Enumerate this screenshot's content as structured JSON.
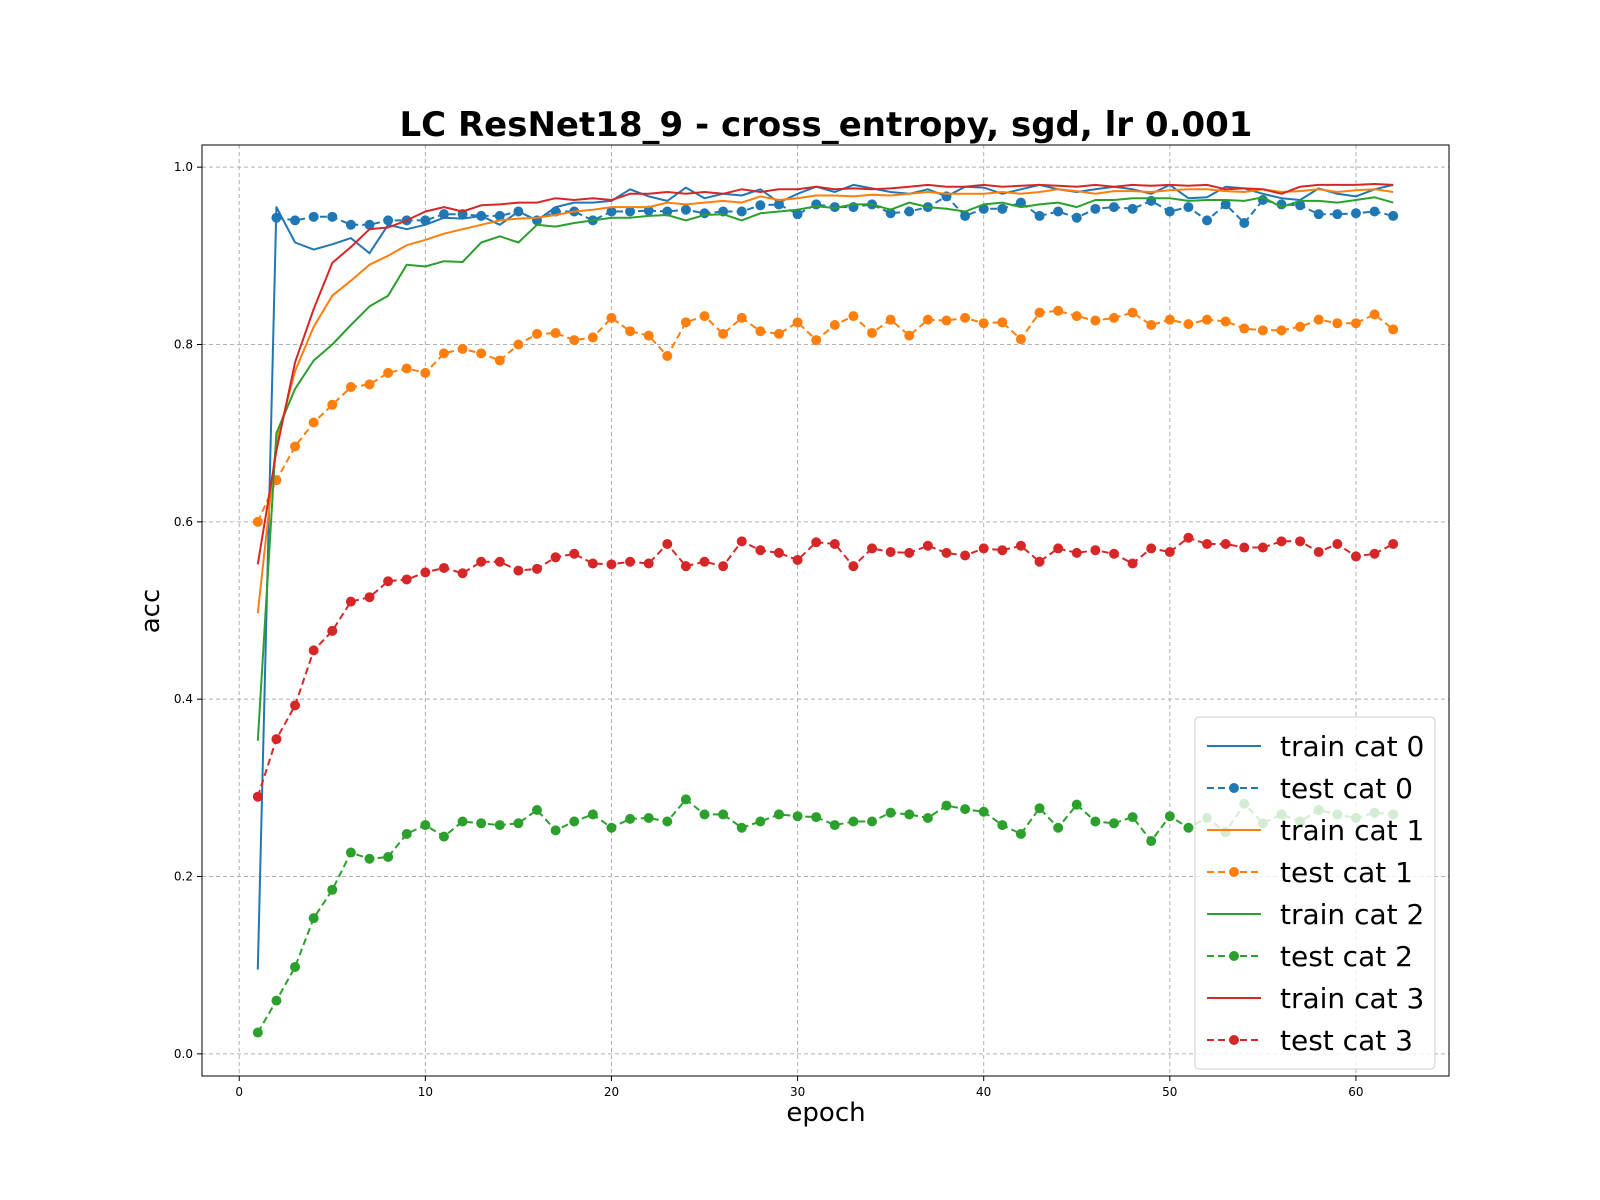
{
  "chart_data": {
    "type": "line",
    "title": "LC ResNet18_9 - cross_entropy, sgd, lr 0.001",
    "xlabel": "epoch",
    "ylabel": "acc",
    "xlim": [
      -2,
      65
    ],
    "ylim": [
      -0.025,
      1.025
    ],
    "xticks": [
      0,
      10,
      20,
      30,
      40,
      50,
      60
    ],
    "yticks": [
      0.0,
      0.2,
      0.4,
      0.6,
      0.8,
      1.0
    ],
    "xtick_labels": [
      "0",
      "10",
      "20",
      "30",
      "40",
      "50",
      "60"
    ],
    "ytick_labels": [
      "0.0",
      "0.2",
      "0.4",
      "0.6",
      "0.8",
      "1.0"
    ],
    "grid": true,
    "legend_position": "lower-right",
    "x": [
      1,
      2,
      3,
      4,
      5,
      6,
      7,
      8,
      9,
      10,
      11,
      12,
      13,
      14,
      15,
      16,
      17,
      18,
      19,
      20,
      21,
      22,
      23,
      24,
      25,
      26,
      27,
      28,
      29,
      30,
      31,
      32,
      33,
      34,
      35,
      36,
      37,
      38,
      39,
      40,
      41,
      42,
      43,
      44,
      45,
      46,
      47,
      48,
      49,
      50,
      51,
      52,
      53,
      54,
      55,
      56,
      57,
      58,
      59,
      60,
      61,
      62
    ],
    "series": [
      {
        "name": "train cat 0",
        "color": "#1f77b4",
        "style": "solid",
        "marker": false,
        "values": [
          0.095,
          0.955,
          0.915,
          0.907,
          0.913,
          0.92,
          0.903,
          0.935,
          0.93,
          0.935,
          0.943,
          0.942,
          0.945,
          0.935,
          0.95,
          0.94,
          0.955,
          0.96,
          0.96,
          0.962,
          0.975,
          0.967,
          0.962,
          0.977,
          0.965,
          0.97,
          0.968,
          0.975,
          0.96,
          0.97,
          0.978,
          0.972,
          0.98,
          0.976,
          0.972,
          0.97,
          0.975,
          0.967,
          0.978,
          0.977,
          0.97,
          0.975,
          0.98,
          0.975,
          0.972,
          0.975,
          0.978,
          0.975,
          0.97,
          0.98,
          0.965,
          0.966,
          0.978,
          0.976,
          0.97,
          0.965,
          0.963,
          0.976,
          0.97,
          0.967,
          0.975,
          0.98
        ]
      },
      {
        "name": "test cat 0",
        "color": "#1f77b4",
        "style": "dashed",
        "marker": true,
        "values": [
          null,
          0.943,
          0.94,
          0.944,
          0.944,
          0.935,
          0.935,
          0.94,
          0.94,
          0.94,
          0.947,
          0.947,
          0.945,
          0.945,
          0.95,
          0.94,
          0.95,
          0.95,
          0.94,
          0.95,
          0.95,
          0.951,
          0.95,
          0.952,
          0.948,
          0.95,
          0.95,
          0.957,
          0.958,
          0.947,
          0.958,
          0.955,
          0.955,
          0.958,
          0.948,
          0.95,
          0.955,
          0.967,
          0.945,
          0.953,
          0.953,
          0.96,
          0.945,
          0.95,
          0.943,
          0.953,
          0.955,
          0.953,
          0.962,
          0.95,
          0.955,
          0.94,
          0.958,
          0.937,
          0.963,
          0.958,
          0.957,
          0.947,
          0.947,
          0.948,
          0.95,
          0.945
        ]
      },
      {
        "name": "train cat 1",
        "color": "#ff7f0e",
        "style": "solid",
        "marker": false,
        "values": [
          0.497,
          0.69,
          0.77,
          0.82,
          0.855,
          0.872,
          0.89,
          0.9,
          0.912,
          0.918,
          0.925,
          0.93,
          0.935,
          0.94,
          0.942,
          0.943,
          0.946,
          0.95,
          0.952,
          0.955,
          0.955,
          0.955,
          0.96,
          0.958,
          0.96,
          0.962,
          0.96,
          0.967,
          0.963,
          0.965,
          0.968,
          0.968,
          0.967,
          0.969,
          0.968,
          0.97,
          0.972,
          0.97,
          0.97,
          0.97,
          0.972,
          0.97,
          0.972,
          0.975,
          0.973,
          0.97,
          0.973,
          0.973,
          0.972,
          0.974,
          0.975,
          0.975,
          0.973,
          0.972,
          0.975,
          0.972,
          0.973,
          0.975,
          0.972,
          0.974,
          0.975,
          0.972
        ]
      },
      {
        "name": "test cat 1",
        "color": "#ff7f0e",
        "style": "dashed",
        "marker": true,
        "values": [
          0.6,
          0.647,
          0.685,
          0.712,
          0.732,
          0.752,
          0.755,
          0.768,
          0.773,
          0.768,
          0.79,
          0.795,
          0.79,
          0.782,
          0.8,
          0.812,
          0.813,
          0.805,
          0.808,
          0.83,
          0.815,
          0.81,
          0.787,
          0.825,
          0.832,
          0.812,
          0.83,
          0.815,
          0.812,
          0.825,
          0.805,
          0.822,
          0.832,
          0.813,
          0.828,
          0.81,
          0.828,
          0.827,
          0.83,
          0.824,
          0.825,
          0.806,
          0.836,
          0.838,
          0.832,
          0.827,
          0.83,
          0.836,
          0.822,
          0.828,
          0.823,
          0.828,
          0.826,
          0.818,
          0.816,
          0.816,
          0.82,
          0.828,
          0.824,
          0.824,
          0.834,
          0.817
        ]
      },
      {
        "name": "train cat 2",
        "color": "#2ca02c",
        "style": "solid",
        "marker": false,
        "values": [
          0.353,
          0.7,
          0.75,
          0.782,
          0.8,
          0.822,
          0.843,
          0.855,
          0.89,
          0.888,
          0.894,
          0.893,
          0.915,
          0.922,
          0.915,
          0.935,
          0.933,
          0.937,
          0.94,
          0.943,
          0.943,
          0.945,
          0.946,
          0.94,
          0.946,
          0.947,
          0.94,
          0.948,
          0.95,
          0.952,
          0.956,
          0.954,
          0.958,
          0.958,
          0.952,
          0.96,
          0.955,
          0.953,
          0.95,
          0.958,
          0.96,
          0.955,
          0.958,
          0.96,
          0.955,
          0.963,
          0.963,
          0.965,
          0.965,
          0.965,
          0.962,
          0.963,
          0.963,
          0.962,
          0.966,
          0.955,
          0.962,
          0.962,
          0.96,
          0.963,
          0.966,
          0.96
        ]
      },
      {
        "name": "test cat 2",
        "color": "#2ca02c",
        "style": "dashed",
        "marker": true,
        "values": [
          0.024,
          0.06,
          0.098,
          0.153,
          0.185,
          0.227,
          0.22,
          0.222,
          0.248,
          0.258,
          0.245,
          0.262,
          0.26,
          0.258,
          0.26,
          0.275,
          0.252,
          0.262,
          0.27,
          0.255,
          0.265,
          0.266,
          0.262,
          0.287,
          0.27,
          0.27,
          0.255,
          0.262,
          0.27,
          0.268,
          0.267,
          0.258,
          0.262,
          0.262,
          0.272,
          0.27,
          0.266,
          0.28,
          0.276,
          0.273,
          0.258,
          0.248,
          0.277,
          0.255,
          0.281,
          0.262,
          0.26,
          0.267,
          0.24,
          0.268,
          0.255,
          0.266,
          0.25,
          0.282,
          0.26,
          0.27,
          0.262,
          0.275,
          0.27,
          0.266,
          0.272,
          0.27
        ]
      },
      {
        "name": "train cat 3",
        "color": "#d62728",
        "style": "solid",
        "marker": false,
        "values": [
          0.552,
          0.68,
          0.78,
          0.84,
          0.892,
          0.91,
          0.93,
          0.932,
          0.94,
          0.95,
          0.955,
          0.95,
          0.957,
          0.958,
          0.96,
          0.96,
          0.965,
          0.963,
          0.965,
          0.963,
          0.97,
          0.97,
          0.972,
          0.97,
          0.972,
          0.97,
          0.975,
          0.972,
          0.975,
          0.975,
          0.978,
          0.975,
          0.976,
          0.975,
          0.976,
          0.978,
          0.98,
          0.978,
          0.978,
          0.98,
          0.978,
          0.979,
          0.98,
          0.979,
          0.978,
          0.98,
          0.978,
          0.98,
          0.979,
          0.98,
          0.979,
          0.98,
          0.975,
          0.976,
          0.975,
          0.97,
          0.978,
          0.98,
          0.98,
          0.98,
          0.981,
          0.98
        ]
      },
      {
        "name": "test cat 3",
        "color": "#d62728",
        "style": "dashed",
        "marker": true,
        "values": [
          0.29,
          0.355,
          0.393,
          0.455,
          0.477,
          0.51,
          0.515,
          0.533,
          0.535,
          0.543,
          0.548,
          0.542,
          0.555,
          0.555,
          0.545,
          0.547,
          0.56,
          0.564,
          0.553,
          0.552,
          0.555,
          0.553,
          0.575,
          0.55,
          0.555,
          0.55,
          0.578,
          0.568,
          0.565,
          0.557,
          0.577,
          0.575,
          0.55,
          0.57,
          0.566,
          0.565,
          0.573,
          0.565,
          0.562,
          0.57,
          0.568,
          0.573,
          0.555,
          0.57,
          0.565,
          0.568,
          0.564,
          0.553,
          0.57,
          0.566,
          0.582,
          0.575,
          0.575,
          0.571,
          0.571,
          0.578,
          0.578,
          0.566,
          0.575,
          0.561,
          0.564,
          0.575
        ]
      }
    ]
  }
}
